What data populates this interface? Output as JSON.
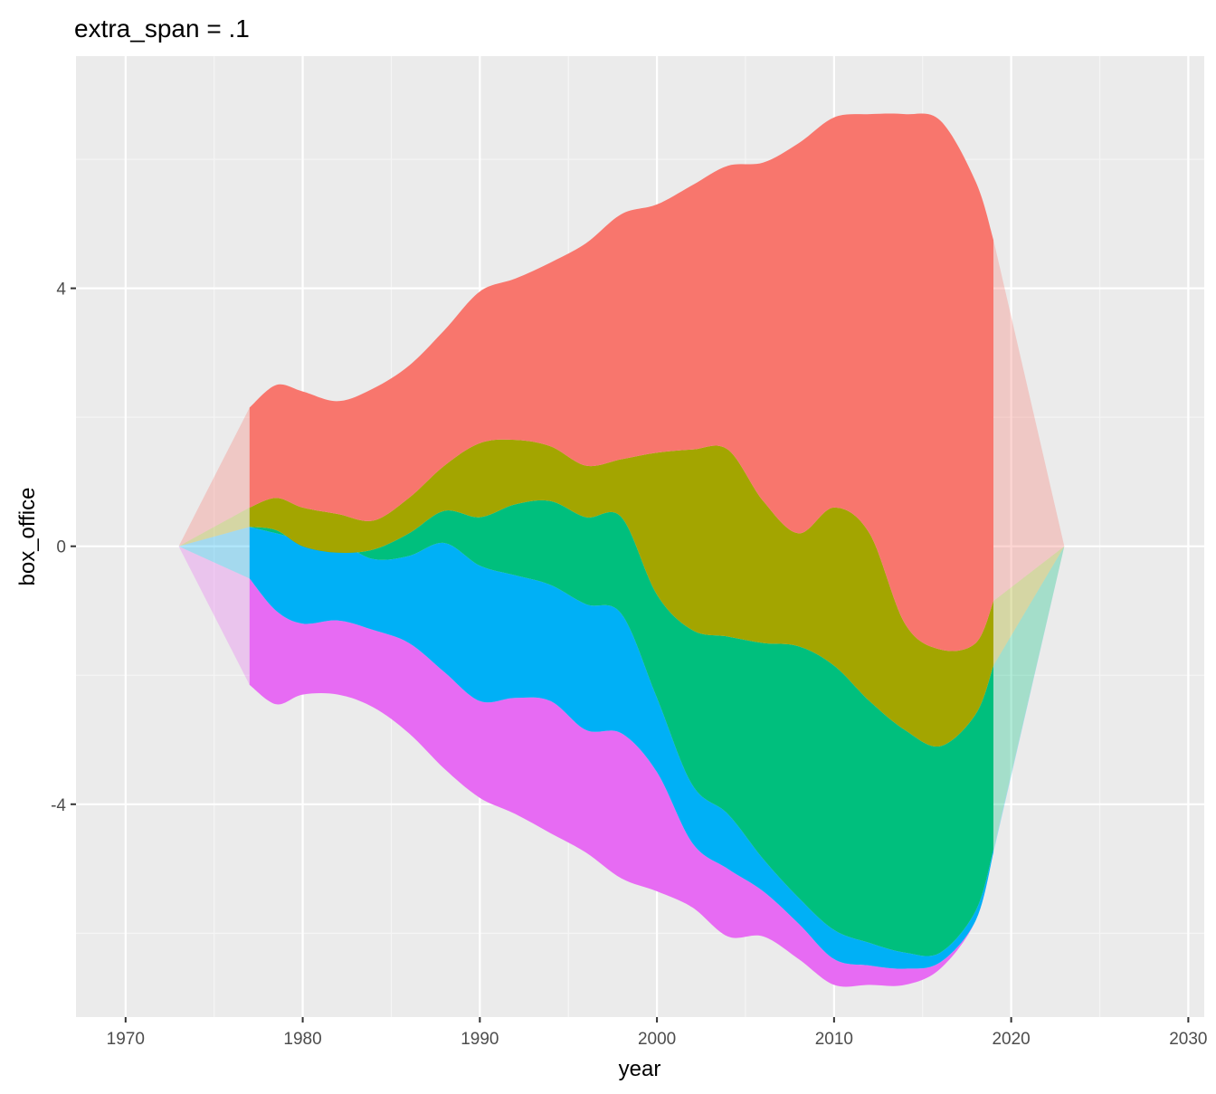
{
  "chart_data": {
    "type": "area",
    "title": "extra_span = .1",
    "xlabel": "year",
    "ylabel": "box_office",
    "xlim": [
      1967.2,
      2030.9
    ],
    "ylim": [
      -7.3,
      7.6
    ],
    "x_ticks": [
      1970,
      1980,
      1990,
      2000,
      2010,
      2020,
      2030
    ],
    "x_tick_labels": [
      "1970",
      "1980",
      "1990",
      "2000",
      "2010",
      "2020",
      "2030"
    ],
    "y_ticks": [
      -4,
      0,
      4
    ],
    "y_tick_labels": [
      "-4",
      "0",
      "4"
    ],
    "grid": true,
    "legend": "none",
    "data_range": [
      1977,
      2019
    ],
    "extrapolated_range": [
      1973,
      2023
    ],
    "layer_order_bottom_to_top": [
      "magenta",
      "blue",
      "green",
      "olive",
      "red"
    ],
    "boundaries": {
      "x": [
        1977,
        1978.5,
        1980,
        1982,
        1984,
        1986,
        1988,
        1990,
        1992,
        1994,
        1996,
        1998,
        2000,
        2002,
        2004,
        2006,
        2008,
        2010,
        2012,
        2014,
        2016,
        2018,
        2019
      ],
      "bottom": [
        -2.15,
        -2.45,
        -2.3,
        -2.3,
        -2.5,
        -2.9,
        -3.45,
        -3.9,
        -4.15,
        -4.45,
        -4.75,
        -5.15,
        -5.35,
        -5.6,
        -6.05,
        -6.05,
        -6.4,
        -6.8,
        -6.8,
        -6.8,
        -6.55,
        -5.8,
        -4.75
      ],
      "mag_blue": [
        -0.5,
        -1.0,
        -1.2,
        -1.15,
        -1.3,
        -1.5,
        -1.95,
        -2.4,
        -2.35,
        -2.4,
        -2.85,
        -2.9,
        -3.5,
        -4.6,
        -5.0,
        -5.35,
        -5.85,
        -6.4,
        -6.5,
        -6.55,
        -6.45,
        -5.8,
        -4.75
      ],
      "blue_green": [
        0.3,
        0.2,
        0.1,
        0.05,
        -0.2,
        -0.15,
        0.05,
        -0.3,
        -0.45,
        -0.6,
        -0.9,
        -1.05,
        -2.35,
        -3.7,
        -4.15,
        -4.85,
        -5.45,
        -5.95,
        -6.15,
        -6.3,
        -6.3,
        -5.65,
        -4.7
      ],
      "green_olive": [
        0.3,
        0.25,
        0.0,
        -0.1,
        -0.05,
        0.2,
        0.55,
        0.45,
        0.65,
        0.7,
        0.45,
        0.45,
        -0.75,
        -1.3,
        -1.4,
        -1.5,
        -1.55,
        -1.85,
        -2.4,
        -2.85,
        -3.1,
        -2.6,
        -1.85
      ],
      "olive_red": [
        0.6,
        0.75,
        0.6,
        0.5,
        0.4,
        0.75,
        1.25,
        1.6,
        1.65,
        1.55,
        1.25,
        1.35,
        1.45,
        1.5,
        1.5,
        0.7,
        0.2,
        0.6,
        0.2,
        -1.2,
        -1.6,
        -1.5,
        -0.85
      ],
      "top": [
        2.15,
        2.5,
        2.4,
        2.25,
        2.45,
        2.8,
        3.35,
        3.95,
        4.15,
        4.4,
        4.7,
        5.15,
        5.3,
        5.6,
        5.9,
        5.95,
        6.25,
        6.65,
        6.7,
        6.7,
        6.6,
        5.65,
        4.75
      ]
    },
    "series": [
      {
        "color_name": "red",
        "color": "#F8766D"
      },
      {
        "color_name": "olive",
        "color": "#A3A500"
      },
      {
        "color_name": "green",
        "color": "#00BF7D"
      },
      {
        "color_name": "blue",
        "color": "#00B0F6"
      },
      {
        "color_name": "magenta",
        "color": "#E76BF3"
      }
    ],
    "colors": {
      "panel_bg": "#EBEBEB",
      "grid_major": "#FFFFFF",
      "grid_minor": "#F5F5F5"
    }
  }
}
